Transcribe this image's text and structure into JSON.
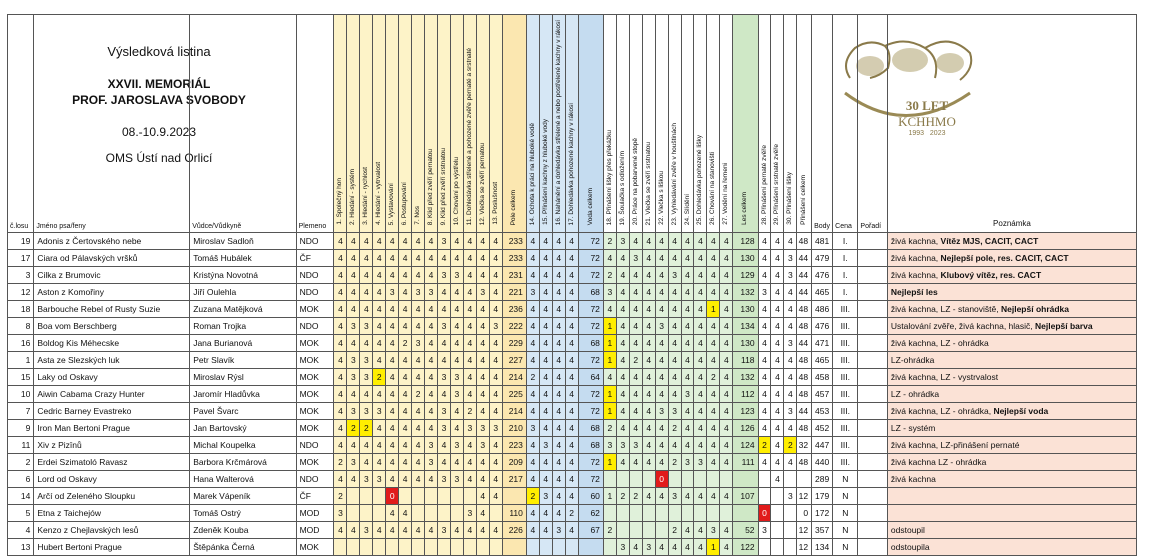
{
  "header": {
    "title": "Výsledková listina",
    "event_line1": "XXVII. MEMORIÁL",
    "event_line2": "PROF. JAROSLAVA SVOBODY",
    "dates": "08.-10.9.2023",
    "organizer": "OMS Ústí nad Orlicí"
  },
  "logo": {
    "years_text": "30 LET",
    "brand": "KCHHMO",
    "years": "1993   2023"
  },
  "columns": {
    "num": "č.losu",
    "name": "Jméno psa/feny",
    "handler": "Vůdce/Vůdkyně",
    "breed": "Plemeno",
    "disciplines": [
      "1. Společný hon",
      "2. Hledání - systém",
      "3. Hledání - rychlost",
      "4. Hledání - vytrvalost",
      "5. Vystavování",
      "6. Postupování",
      "7. Nos",
      "8. Klid před zvěří pernatou",
      "9. Klid před zvěří srstnatou",
      "10. Chování po výstřelu",
      "11. Dohledávka střelené a pohozené zvěře pernaté a srstnaté",
      "12. Vlečka se zvěří pernatou",
      "13. Poslušnost",
      "Pole celkem",
      "14. Ochota k práci na hluboké vodě",
      "15. Přinášení kachny z hluboké vody",
      "16. Nahánění a dohledávka střelené a nebo postřelené kachny v rákosí",
      "17. Dohledávka pohozené kachny v rákosí",
      "Voda celkem",
      "18. Přinášení lišky přes překážku",
      "19. Šoulačka s odložením",
      "20. Práce na pobarvené stopě",
      "21. Vlečka se zvěří srstnatou",
      "22. Vlečka s liškou",
      "23. Vyhledávání zvěře v houštinách",
      "24. Slídění",
      "25. Dohledávka pohozené lišky",
      "26. Chování na stanovišti",
      "27. Vodění na řemeni",
      "Les celkem",
      "28. Přinášení pernaté zvěře",
      "29. Přinášení srstnaté zvěře",
      "30. Přinášení lišky",
      "Přinášení celkem"
    ],
    "points": "Body",
    "prize": "Cena",
    "order": "Pořadí",
    "note": "Poznámka"
  },
  "rows": [
    {
      "n": "19",
      "name": "Adonis z Čertovského nebe",
      "handler": "Miroslav Sadloň",
      "breed": "NDO",
      "f": [
        "4",
        "4",
        "4",
        "4",
        "4",
        "4",
        "4",
        "4",
        "3",
        "4",
        "4",
        "4",
        "4"
      ],
      "pole": "233",
      "w": [
        "4",
        "4",
        "4",
        "4"
      ],
      "voda": "72",
      "l": [
        "2",
        "3",
        "4",
        "4",
        "4",
        "4",
        "4",
        "4",
        "4",
        "4"
      ],
      "les": "128",
      "p": [
        "4",
        "4",
        "4"
      ],
      "prin": "48",
      "body": "481",
      "cena": "I.",
      "poradi": "",
      "note": "živá kachna, ",
      "note_b": "Vítěz MJS, CACIT, CACT",
      "y": [],
      "r": []
    },
    {
      "n": "17",
      "name": "Ciara od Pálavských vršků",
      "handler": "Tomáš Hubálek",
      "breed": "ČF",
      "f": [
        "4",
        "4",
        "4",
        "4",
        "4",
        "4",
        "4",
        "4",
        "4",
        "4",
        "4",
        "4",
        "4"
      ],
      "pole": "233",
      "w": [
        "4",
        "4",
        "4",
        "4"
      ],
      "voda": "72",
      "l": [
        "4",
        "4",
        "3",
        "4",
        "4",
        "4",
        "4",
        "4",
        "4",
        "4"
      ],
      "les": "130",
      "p": [
        "4",
        "4",
        "3"
      ],
      "prin": "44",
      "body": "479",
      "cena": "I.",
      "poradi": "",
      "note": "živá kachna, ",
      "note_b": "Nejlepší pole, res. CACIT, CACT",
      "y": [],
      "r": []
    },
    {
      "n": "3",
      "name": "Cilka z Brumovic",
      "handler": "Kristýna Novotná",
      "breed": "NDO",
      "f": [
        "4",
        "4",
        "4",
        "4",
        "4",
        "4",
        "4",
        "4",
        "3",
        "3",
        "4",
        "4",
        "4"
      ],
      "pole": "231",
      "w": [
        "4",
        "4",
        "4",
        "4"
      ],
      "voda": "72",
      "l": [
        "2",
        "4",
        "4",
        "4",
        "4",
        "3",
        "4",
        "4",
        "4",
        "4"
      ],
      "les": "129",
      "p": [
        "4",
        "4",
        "3"
      ],
      "prin": "44",
      "body": "476",
      "cena": "I.",
      "poradi": "",
      "note": "živá kachna, ",
      "note_b": "Klubový vítěz, res. CACT",
      "y": [],
      "r": []
    },
    {
      "n": "12",
      "name": "Aston z Komořiny",
      "handler": "Jiří Oulehla",
      "breed": "NDO",
      "f": [
        "4",
        "4",
        "4",
        "4",
        "3",
        "4",
        "3",
        "3",
        "4",
        "4",
        "4",
        "3",
        "4"
      ],
      "pole": "221",
      "w": [
        "3",
        "4",
        "4",
        "4"
      ],
      "voda": "68",
      "l": [
        "3",
        "4",
        "4",
        "4",
        "4",
        "4",
        "4",
        "4",
        "4",
        "4"
      ],
      "les": "132",
      "p": [
        "3",
        "4",
        "4"
      ],
      "prin": "44",
      "body": "465",
      "cena": "I.",
      "poradi": "",
      "note": "",
      "note_b": "Nejlepší les",
      "y": [],
      "r": []
    },
    {
      "n": "18",
      "name": "Barbouche Rebel of Rusty Suzie",
      "handler": "Zuzana Matějková",
      "breed": "MOK",
      "f": [
        "4",
        "4",
        "4",
        "4",
        "4",
        "4",
        "4",
        "4",
        "4",
        "4",
        "4",
        "4",
        "4"
      ],
      "pole": "236",
      "w": [
        "4",
        "4",
        "4",
        "4"
      ],
      "voda": "72",
      "l": [
        "4",
        "4",
        "4",
        "4",
        "4",
        "4",
        "4",
        "4",
        "1",
        "4"
      ],
      "les": "130",
      "p": [
        "4",
        "4",
        "4"
      ],
      "prin": "48",
      "body": "486",
      "cena": "III.",
      "poradi": "",
      "note": "živá kachna, LZ - stanoviště, ",
      "note_b": "Nejlepší ohrádka",
      "y": [
        "l8"
      ],
      "r": []
    },
    {
      "n": "8",
      "name": "Boa vom Berschberg",
      "handler": "Roman Trojka",
      "breed": "NDO",
      "f": [
        "4",
        "3",
        "3",
        "4",
        "4",
        "4",
        "4",
        "4",
        "3",
        "4",
        "4",
        "4",
        "3"
      ],
      "pole": "222",
      "w": [
        "4",
        "4",
        "4",
        "4"
      ],
      "voda": "72",
      "l": [
        "1",
        "4",
        "4",
        "4",
        "3",
        "4",
        "4",
        "4",
        "4",
        "4"
      ],
      "les": "134",
      "p": [
        "4",
        "4",
        "4"
      ],
      "prin": "48",
      "body": "476",
      "cena": "III.",
      "poradi": "",
      "note": "Ustalování zvěře, živá kachna, hlasič, ",
      "note_b": "Nejlepší barva",
      "y": [
        "l0"
      ],
      "r": []
    },
    {
      "n": "16",
      "name": "Boldog Kis Méhecske",
      "handler": "Jana Burianová",
      "breed": "MOK",
      "f": [
        "4",
        "4",
        "4",
        "4",
        "4",
        "2",
        "3",
        "4",
        "4",
        "4",
        "4",
        "4",
        "4"
      ],
      "pole": "229",
      "w": [
        "4",
        "4",
        "4",
        "4"
      ],
      "voda": "68",
      "l": [
        "1",
        "4",
        "4",
        "4",
        "4",
        "4",
        "4",
        "4",
        "4",
        "4"
      ],
      "les": "130",
      "p": [
        "4",
        "4",
        "3"
      ],
      "prin": "44",
      "body": "471",
      "cena": "III.",
      "poradi": "",
      "note": "živá kachna, LZ - ohrádka",
      "note_b": "",
      "y": [
        "l0"
      ],
      "r": []
    },
    {
      "n": "1",
      "name": "Asta ze Slezských luk",
      "handler": "Petr Slavík",
      "breed": "MOK",
      "f": [
        "4",
        "3",
        "3",
        "4",
        "4",
        "4",
        "4",
        "4",
        "4",
        "4",
        "4",
        "4",
        "4"
      ],
      "pole": "227",
      "w": [
        "4",
        "4",
        "4",
        "4"
      ],
      "voda": "72",
      "l": [
        "1",
        "4",
        "2",
        "4",
        "4",
        "4",
        "4",
        "4",
        "4",
        "4"
      ],
      "les": "118",
      "p": [
        "4",
        "4",
        "4"
      ],
      "prin": "48",
      "body": "465",
      "cena": "III.",
      "poradi": "",
      "note": "LZ-ohrádka",
      "note_b": "",
      "y": [
        "l0"
      ],
      "r": []
    },
    {
      "n": "15",
      "name": "Laky od Oskavy",
      "handler": "Miroslav Rýsl",
      "breed": "MOK",
      "f": [
        "4",
        "3",
        "3",
        "2",
        "4",
        "4",
        "4",
        "4",
        "3",
        "3",
        "4",
        "4",
        "4"
      ],
      "pole": "214",
      "w": [
        "2",
        "4",
        "4",
        "4"
      ],
      "voda": "64",
      "l": [
        "4",
        "4",
        "4",
        "4",
        "4",
        "4",
        "4",
        "4",
        "2",
        "4"
      ],
      "les": "132",
      "p": [
        "4",
        "4",
        "4"
      ],
      "prin": "48",
      "body": "458",
      "cena": "III.",
      "poradi": "",
      "note": "živá kachna, LZ - vystrvalost",
      "note_b": "",
      "y": [
        "f3"
      ],
      "r": []
    },
    {
      "n": "10",
      "name": "Aiwin Cabama Crazy Hunter",
      "handler": "Jaromír Hladůvka",
      "breed": "MOK",
      "f": [
        "4",
        "4",
        "4",
        "4",
        "4",
        "4",
        "2",
        "4",
        "4",
        "3",
        "4",
        "4",
        "4"
      ],
      "pole": "225",
      "w": [
        "4",
        "4",
        "4",
        "4"
      ],
      "voda": "72",
      "l": [
        "1",
        "4",
        "4",
        "4",
        "4",
        "4",
        "3",
        "4",
        "4",
        "4"
      ],
      "les": "112",
      "p": [
        "4",
        "4",
        "4"
      ],
      "prin": "48",
      "body": "457",
      "cena": "III.",
      "poradi": "",
      "note": "LZ - ohrádka",
      "note_b": "",
      "y": [
        "l0"
      ],
      "r": []
    },
    {
      "n": "7",
      "name": "Cedric Barney Evastreko",
      "handler": "Pavel Švarc",
      "breed": "MOK",
      "f": [
        "4",
        "3",
        "3",
        "3",
        "4",
        "4",
        "4",
        "4",
        "3",
        "4",
        "2",
        "4",
        "4"
      ],
      "pole": "214",
      "w": [
        "4",
        "4",
        "4",
        "4"
      ],
      "voda": "72",
      "l": [
        "1",
        "4",
        "4",
        "4",
        "3",
        "3",
        "4",
        "4",
        "4",
        "4"
      ],
      "les": "123",
      "p": [
        "4",
        "4",
        "3"
      ],
      "prin": "44",
      "body": "453",
      "cena": "III.",
      "poradi": "",
      "note": "živá kachna, LZ - ohrádka, ",
      "note_b": "Nejlepší voda",
      "y": [
        "l0"
      ],
      "r": []
    },
    {
      "n": "9",
      "name": "Iron Man Bertoni Prague",
      "handler": "Jan Bartovský",
      "breed": "MOK",
      "f": [
        "4",
        "2",
        "2",
        "4",
        "4",
        "4",
        "4",
        "4",
        "3",
        "4",
        "3",
        "3",
        "3"
      ],
      "pole": "210",
      "w": [
        "3",
        "4",
        "4",
        "4"
      ],
      "voda": "68",
      "l": [
        "2",
        "4",
        "4",
        "4",
        "4",
        "2",
        "4",
        "4",
        "4",
        "4"
      ],
      "les": "126",
      "p": [
        "4",
        "4",
        "4"
      ],
      "prin": "48",
      "body": "452",
      "cena": "III.",
      "poradi": "",
      "note": "LZ - systém",
      "note_b": "",
      "y": [
        "f1",
        "f2"
      ],
      "r": []
    },
    {
      "n": "11",
      "name": "Xiv z Pizīnů",
      "handler": "Michal Koupelka",
      "breed": "NDO",
      "f": [
        "4",
        "4",
        "4",
        "4",
        "4",
        "4",
        "4",
        "3",
        "4",
        "3",
        "4",
        "3",
        "4"
      ],
      "pole": "223",
      "w": [
        "4",
        "3",
        "4",
        "4"
      ],
      "voda": "68",
      "l": [
        "3",
        "3",
        "3",
        "4",
        "4",
        "4",
        "4",
        "4",
        "4",
        "4"
      ],
      "les": "124",
      "p": [
        "2",
        "4",
        "2"
      ],
      "prin": "32",
      "body": "447",
      "cena": "III.",
      "poradi": "",
      "note": "živá kachna, LZ-přinášení pernaté",
      "note_b": "",
      "y": [
        "p0",
        "p2"
      ],
      "r": []
    },
    {
      "n": "2",
      "name": "Erdei Szimatoló Ravasz",
      "handler": "Barbora Krčmárová",
      "breed": "MOK",
      "f": [
        "2",
        "3",
        "4",
        "4",
        "4",
        "4",
        "4",
        "3",
        "4",
        "4",
        "4",
        "4",
        "4"
      ],
      "pole": "209",
      "w": [
        "4",
        "4",
        "4",
        "4"
      ],
      "voda": "72",
      "l": [
        "1",
        "4",
        "4",
        "4",
        "4",
        "2",
        "3",
        "3",
        "4",
        "4"
      ],
      "les": "111",
      "p": [
        "4",
        "4",
        "4"
      ],
      "prin": "48",
      "body": "440",
      "cena": "III.",
      "poradi": "",
      "note": "živá kachna LZ - ohrádka",
      "note_b": "",
      "y": [
        "l0"
      ],
      "r": []
    },
    {
      "n": "6",
      "name": "Lord od Oskavy",
      "handler": "Hana Walterová",
      "breed": "NDO",
      "f": [
        "4",
        "4",
        "3",
        "3",
        "4",
        "4",
        "4",
        "4",
        "3",
        "3",
        "4",
        "4",
        "4"
      ],
      "pole": "217",
      "w": [
        "4",
        "4",
        "4",
        "4"
      ],
      "voda": "72",
      "l": [
        "",
        "",
        "",
        "",
        "0",
        "",
        "",
        "",
        "",
        ""
      ],
      "les": "",
      "p": [
        "",
        "4",
        ""
      ],
      "prin": "",
      "body": "289",
      "cena": "N",
      "poradi": "",
      "note": "živá kachna",
      "note_b": "",
      "y": [],
      "r": [
        "l4"
      ]
    },
    {
      "n": "14",
      "name": "Arčí od Zeleného Sloupku",
      "handler": "Marek Vápeník",
      "breed": "ČF",
      "f": [
        "2",
        "",
        "",
        "",
        "0",
        "",
        "",
        "",
        "",
        "",
        "",
        "4",
        "4"
      ],
      "pole": "",
      "w": [
        "2",
        "3",
        "4",
        "4"
      ],
      "voda": "60",
      "l": [
        "1",
        "2",
        "2",
        "4",
        "4",
        "3",
        "4",
        "4",
        "4",
        "4"
      ],
      "les": "107",
      "p": [
        "",
        "",
        "3"
      ],
      "prin": "12",
      "body": "179",
      "cena": "N",
      "poradi": "",
      "note": "",
      "note_b": "",
      "y": [
        "w0"
      ],
      "r": [
        "f4"
      ]
    },
    {
      "n": "5",
      "name": "Etna z Taichejów",
      "handler": "Tomáš Ostrý",
      "breed": "MOD",
      "f": [
        "3",
        "",
        "",
        "",
        "4",
        "4",
        "",
        "",
        "",
        "",
        "3",
        "4",
        ""
      ],
      "pole": "110",
      "w": [
        "4",
        "4",
        "4",
        "2"
      ],
      "voda": "62",
      "l": [
        "",
        "",
        "",
        "",
        "",
        "",
        "",
        "",
        "",
        ""
      ],
      "les": "",
      "p": [
        "0",
        "",
        ""
      ],
      "prin": "0",
      "body": "172",
      "cena": "N",
      "poradi": "",
      "note": "",
      "note_b": "",
      "y": [],
      "r": [
        "p0"
      ]
    },
    {
      "n": "4",
      "name": "Kenzo z Chejlavských lesů",
      "handler": "Zdeněk Kouba",
      "breed": "MOD",
      "f": [
        "4",
        "4",
        "3",
        "4",
        "4",
        "4",
        "4",
        "4",
        "3",
        "4",
        "4",
        "4",
        "4"
      ],
      "pole": "226",
      "w": [
        "4",
        "4",
        "3",
        "4"
      ],
      "voda": "67",
      "l": [
        "2",
        "",
        "",
        "",
        "",
        "2",
        "4",
        "4",
        "3",
        "4"
      ],
      "les": "52",
      "p": [
        "3",
        "",
        ""
      ],
      "prin": "12",
      "body": "357",
      "cena": "N",
      "poradi": "",
      "note": "odstoupil",
      "note_b": "",
      "y": [],
      "r": []
    },
    {
      "n": "13",
      "name": "Hubert Bertoni Prague",
      "handler": "Štěpánka Černá",
      "breed": "MOK",
      "f": [
        "",
        "",
        "",
        "",
        "",
        "",
        "",
        "",
        "",
        "",
        "",
        "",
        ""
      ],
      "pole": "",
      "w": [
        "",
        "",
        "",
        ""
      ],
      "voda": "",
      "l": [
        "",
        "3",
        "4",
        "3",
        "4",
        "4",
        "4",
        "4",
        "1",
        "4"
      ],
      "les": "122",
      "p": [
        "",
        "",
        ""
      ],
      "prin": "12",
      "body": "134",
      "cena": "N",
      "poradi": "",
      "note": "odstoupila",
      "note_b": "",
      "y": [
        "l8"
      ],
      "r": []
    }
  ]
}
